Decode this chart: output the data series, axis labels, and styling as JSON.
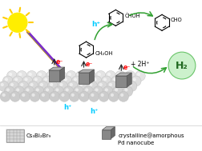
{
  "background_color": "#ffffff",
  "legend_text1": "Cs₃Bi₂Br₉",
  "legend_text2": "crystalline@amorphous\nPd nanocube",
  "electron_label": "e⁻",
  "hole_label": "h⁺",
  "h2_label": "H₂",
  "plus2h_label": "+ 2H⁺",
  "reactant_label": "CH₂OH",
  "product_label1": "ČHOH",
  "product_label2": "CHO",
  "sphere_color": "#e0e0e0",
  "sphere_edge_color": "#b8b8b8",
  "sphere_highlight": "#f8f8f8",
  "cube_face_color": "#888888",
  "cube_top_color": "#b0b0b0",
  "cube_right_color": "#686868",
  "cube_edge_color": "#555555",
  "sun_color": "#ffee00",
  "sun_ray_color": "#ffcc00",
  "h2_circle_color": "#c8f0c8",
  "h2_border_color": "#60c060",
  "electron_color": "#ff0000",
  "hole_color": "#00ccff",
  "arrow_green": "#30a030",
  "arrow_black": "#222222",
  "molecule_color": "#222222",
  "rainbow_colors": [
    "#ff0000",
    "#ff6600",
    "#ffff00",
    "#00cc00",
    "#3399ff",
    "#9900cc"
  ]
}
